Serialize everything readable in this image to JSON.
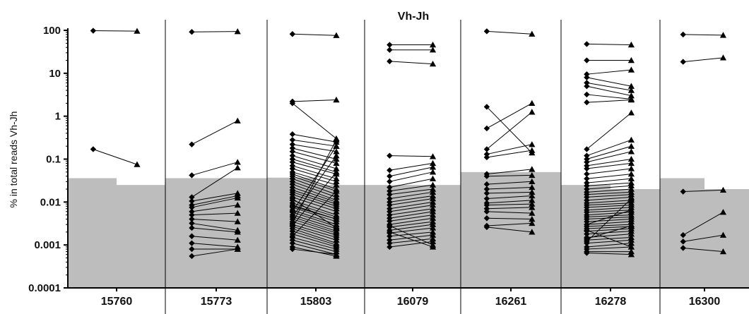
{
  "chart_data": {
    "type": "line",
    "title": "Vh-Jh",
    "ylabel": "% in total reads Vh-Jh",
    "xlabel": "",
    "yscale": "log",
    "ylim": [
      0.0001,
      100
    ],
    "yticks": [
      "100",
      "10",
      "1",
      "0.1",
      "0.01",
      "0.001",
      "0.0001"
    ],
    "categories": [
      "15760",
      "15773",
      "15803",
      "16079",
      "16261",
      "16278",
      "16300"
    ],
    "colors": {
      "background_band": "#bdbdbd",
      "line": "#000000",
      "marker": "#000000",
      "divider": "#000000"
    },
    "markers": {
      "first_timepoint": "diamond",
      "second_timepoint": "triangle"
    },
    "groups": [
      {
        "category": "15760",
        "threshold": [
          0.036,
          0.025
        ],
        "pairs": [
          [
            98,
            96
          ],
          [
            0.17,
            0.075
          ]
        ]
      },
      {
        "category": "15773",
        "threshold": [
          0.036,
          0.036
        ],
        "pairs": [
          [
            92,
            94
          ],
          [
            0.22,
            0.78
          ],
          [
            0.042,
            0.085
          ],
          [
            0.013,
            0.063
          ],
          [
            0.0105,
            0.016
          ],
          [
            0.0085,
            0.014
          ],
          [
            0.0075,
            0.0125
          ],
          [
            0.006,
            0.0085
          ],
          [
            0.005,
            0.0055
          ],
          [
            0.004,
            0.0035
          ],
          [
            0.0032,
            0.0022
          ],
          [
            0.0025,
            0.002
          ],
          [
            0.0016,
            0.0013
          ],
          [
            0.0011,
            0.0009
          ],
          [
            0.0008,
            0.0008
          ],
          [
            0.00055,
            0.0008
          ]
        ]
      },
      {
        "category": "15803",
        "threshold": [
          0.037,
          0.025
        ],
        "pairs": [
          [
            82,
            76
          ],
          [
            2.2,
            2.4
          ],
          [
            2.0,
            0.3
          ],
          [
            0.38,
            0.25
          ],
          [
            0.28,
            0.2
          ],
          [
            0.22,
            0.15
          ],
          [
            0.18,
            0.1
          ],
          [
            0.15,
            0.08
          ],
          [
            0.12,
            0.06
          ],
          [
            0.1,
            0.05
          ],
          [
            0.085,
            0.045
          ],
          [
            0.07,
            0.035
          ],
          [
            0.06,
            0.03
          ],
          [
            0.05,
            0.025
          ],
          [
            0.045,
            0.02
          ],
          [
            0.04,
            0.018
          ],
          [
            0.035,
            0.015
          ],
          [
            0.03,
            0.013
          ],
          [
            0.026,
            0.011
          ],
          [
            0.022,
            0.01
          ],
          [
            0.019,
            0.009
          ],
          [
            0.017,
            0.008
          ],
          [
            0.015,
            0.007
          ],
          [
            0.013,
            0.006
          ],
          [
            0.011,
            0.005
          ],
          [
            0.0095,
            0.0045
          ],
          [
            0.0085,
            0.004
          ],
          [
            0.0075,
            0.0035
          ],
          [
            0.0065,
            0.003
          ],
          [
            0.0058,
            0.0027
          ],
          [
            0.005,
            0.0024
          ],
          [
            0.0045,
            0.0021
          ],
          [
            0.004,
            0.0019
          ],
          [
            0.0035,
            0.0017
          ],
          [
            0.003,
            0.0015
          ],
          [
            0.0027,
            0.0013
          ],
          [
            0.0024,
            0.0011
          ],
          [
            0.0021,
            0.001
          ],
          [
            0.0018,
            0.0009
          ],
          [
            0.0015,
            0.0008
          ],
          [
            0.0013,
            0.0007
          ],
          [
            0.0011,
            0.0006
          ],
          [
            0.0009,
            0.00055
          ],
          [
            0.0008,
            0.0006
          ],
          [
            0.0032,
            0.28
          ],
          [
            0.0045,
            0.12
          ],
          [
            0.006,
            0.2
          ],
          [
            0.0028,
            0.05
          ],
          [
            0.008,
            0.004
          ],
          [
            0.012,
            0.0025
          ],
          [
            0.0016,
            0.018
          ]
        ]
      },
      {
        "category": "16079",
        "threshold": [
          0.025,
          0.025
        ],
        "pairs": [
          [
            46,
            46
          ],
          [
            35,
            35
          ],
          [
            19,
            16.5
          ],
          [
            0.12,
            0.115
          ],
          [
            0.055,
            0.08
          ],
          [
            0.04,
            0.065
          ],
          [
            0.03,
            0.05
          ],
          [
            0.022,
            0.035
          ],
          [
            0.018,
            0.025
          ],
          [
            0.015,
            0.02
          ],
          [
            0.012,
            0.017
          ],
          [
            0.01,
            0.014
          ],
          [
            0.0085,
            0.012
          ],
          [
            0.007,
            0.01
          ],
          [
            0.006,
            0.0085
          ],
          [
            0.005,
            0.007
          ],
          [
            0.0042,
            0.006
          ],
          [
            0.0036,
            0.005
          ],
          [
            0.003,
            0.0042
          ],
          [
            0.0026,
            0.0035
          ],
          [
            0.0022,
            0.003
          ],
          [
            0.0019,
            0.0025
          ],
          [
            0.0016,
            0.002
          ],
          [
            0.0013,
            0.0017
          ],
          [
            0.0011,
            0.0014
          ],
          [
            0.0009,
            0.0012
          ],
          [
            0.0028,
            0.001
          ],
          [
            0.002,
            0.0009
          ]
        ]
      },
      {
        "category": "16261",
        "threshold": [
          0.05,
          0.05
        ],
        "pairs": [
          [
            95,
            82
          ],
          [
            1.65,
            0.14
          ],
          [
            0.52,
            2.0
          ],
          [
            0.17,
            1.25
          ],
          [
            0.13,
            0.22
          ],
          [
            0.11,
            0.16
          ],
          [
            0.045,
            0.058
          ],
          [
            0.04,
            0.042
          ],
          [
            0.026,
            0.03
          ],
          [
            0.02,
            0.022
          ],
          [
            0.016,
            0.017
          ],
          [
            0.012,
            0.014
          ],
          [
            0.0095,
            0.011
          ],
          [
            0.0085,
            0.009
          ],
          [
            0.007,
            0.0075
          ],
          [
            0.006,
            0.0055
          ],
          [
            0.0042,
            0.004
          ],
          [
            0.0028,
            0.0032
          ],
          [
            0.0026,
            0.002
          ]
        ]
      },
      {
        "category": "16278",
        "threshold": [
          0.025,
          0.02
        ],
        "pairs": [
          [
            48,
            46
          ],
          [
            20,
            20
          ],
          [
            9.5,
            12
          ],
          [
            8,
            5
          ],
          [
            6,
            4
          ],
          [
            5,
            3
          ],
          [
            3.2,
            2.5
          ],
          [
            2.1,
            2.4
          ],
          [
            0.17,
            1.2
          ],
          [
            0.12,
            0.28
          ],
          [
            0.1,
            0.2
          ],
          [
            0.085,
            0.15
          ],
          [
            0.07,
            0.1
          ],
          [
            0.06,
            0.08
          ],
          [
            0.045,
            0.06
          ],
          [
            0.035,
            0.045
          ],
          [
            0.028,
            0.035
          ],
          [
            0.024,
            0.028
          ],
          [
            0.02,
            0.024
          ],
          [
            0.017,
            0.02
          ],
          [
            0.015,
            0.017
          ],
          [
            0.013,
            0.015
          ],
          [
            0.011,
            0.013
          ],
          [
            0.0095,
            0.011
          ],
          [
            0.0085,
            0.0095
          ],
          [
            0.0075,
            0.0085
          ],
          [
            0.0065,
            0.0075
          ],
          [
            0.0058,
            0.0065
          ],
          [
            0.005,
            0.0058
          ],
          [
            0.0045,
            0.005
          ],
          [
            0.004,
            0.0045
          ],
          [
            0.0035,
            0.004
          ],
          [
            0.003,
            0.0035
          ],
          [
            0.0027,
            0.003
          ],
          [
            0.0024,
            0.0027
          ],
          [
            0.0021,
            0.0024
          ],
          [
            0.0018,
            0.0021
          ],
          [
            0.0015,
            0.0018
          ],
          [
            0.0013,
            0.0015
          ],
          [
            0.0011,
            0.0013
          ],
          [
            0.0009,
            0.0011
          ],
          [
            0.0008,
            0.0009
          ],
          [
            0.0007,
            0.0007
          ],
          [
            0.00065,
            0.0006
          ],
          [
            0.003,
            0.0065
          ],
          [
            0.0012,
            0.012
          ],
          [
            0.0014,
            0.0028
          ],
          [
            0.0022,
            0.0009
          ]
        ]
      },
      {
        "category": "16300",
        "threshold": [
          0.036,
          0.02
        ],
        "pairs": [
          [
            80,
            77
          ],
          [
            18.5,
            23
          ],
          [
            0.0175,
            0.019
          ],
          [
            0.0017,
            0.0058
          ],
          [
            0.0012,
            0.0017
          ],
          [
            0.00085,
            0.0007
          ]
        ]
      }
    ]
  }
}
